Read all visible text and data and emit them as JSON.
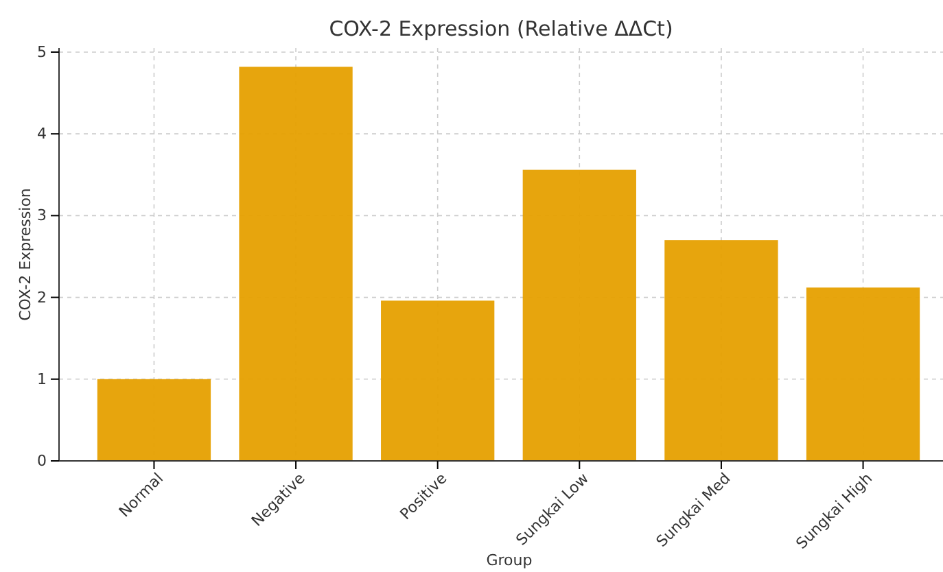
{
  "chart_data": {
    "type": "bar",
    "title": "COX-2 Expression (Relative ΔΔCt)",
    "xlabel": "Group",
    "ylabel": "COX-2 Expression",
    "categories": [
      "Normal",
      "Negative",
      "Positive",
      "Sungkai Low",
      "Sungkai Med",
      "Sungkai High"
    ],
    "values": [
      1.0,
      4.82,
      1.96,
      3.56,
      2.7,
      2.12
    ],
    "color": "#e6a000",
    "ylim": [
      0,
      5.05
    ],
    "yticks": [
      0,
      1,
      2,
      3,
      4,
      5
    ],
    "grid": true
  }
}
